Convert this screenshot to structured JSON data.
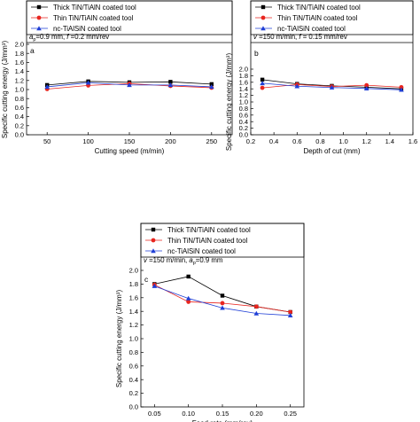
{
  "legend": {
    "thick": "Thick TiN/TiAlN coated tool",
    "thin": "Thin TiN/TiAlN coated tool",
    "nc": "nc-TiAlSiN coated tool"
  },
  "series_colors": {
    "thick": "#000000",
    "thin": "#e8251f",
    "nc": "#1f3fd6"
  },
  "chart_data": [
    {
      "type": "line",
      "panel_label": "a",
      "conditions": [
        "a",
        "p",
        "=0.9 mm, ",
        "f",
        " =0.2 mm/rev"
      ],
      "xlabel": "Cutting speed (m/min)",
      "ylabel": "Specific cutting energy (J/mm³)",
      "xlim": [
        25,
        275
      ],
      "ylim": [
        0.0,
        2.0
      ],
      "xticks": [
        50,
        100,
        150,
        200,
        250
      ],
      "yticks": [
        0.0,
        0.2,
        0.4,
        0.6,
        0.8,
        1.0,
        1.2,
        1.4,
        1.6,
        1.8,
        2.0
      ],
      "ytick_labels": [
        "0.0",
        "0.2",
        "0.4",
        "0.6",
        "0.8",
        "1.0",
        "1.2",
        "1.4",
        "1.6",
        "1.8",
        "2.0"
      ],
      "x": [
        50,
        100,
        150,
        200,
        250
      ],
      "series": [
        {
          "key": "thick",
          "values": [
            1.1,
            1.18,
            1.16,
            1.17,
            1.12
          ]
        },
        {
          "key": "thin",
          "values": [
            1.01,
            1.09,
            1.13,
            1.08,
            1.04
          ]
        },
        {
          "key": "nc",
          "values": [
            1.06,
            1.15,
            1.1,
            1.1,
            1.06
          ]
        }
      ]
    },
    {
      "type": "line",
      "panel_label": "b",
      "conditions": [
        "v",
        " =150 m/min, ",
        "f",
        " = 0.15 mm/rev"
      ],
      "xlabel": "Depth of cut (mm)",
      "ylabel": "Specific cutting energy (J/mm³)",
      "xlim": [
        0.2,
        1.6
      ],
      "ylim": [
        0.0,
        2.0
      ],
      "xticks": [
        0.2,
        0.4,
        0.6,
        0.8,
        1.0,
        1.2,
        1.4,
        1.6
      ],
      "xtick_labels": [
        "0.2",
        "0.4",
        "0.6",
        "0.8",
        "1.0",
        "1.2",
        "1.4",
        "1.6"
      ],
      "yticks": [
        0.0,
        0.2,
        0.4,
        0.6,
        0.8,
        1.0,
        1.2,
        1.4,
        1.6,
        1.8,
        2.0
      ],
      "ytick_labels": [
        "0.0",
        "0.2",
        "0.4",
        "0.6",
        "0.8",
        "1.0",
        "1.2",
        "1.4",
        "1.6",
        "1.8",
        "2.0"
      ],
      "x": [
        0.3,
        0.6,
        0.9,
        1.2,
        1.5
      ],
      "series": [
        {
          "key": "thick",
          "values": [
            1.68,
            1.55,
            1.49,
            1.45,
            1.4
          ]
        },
        {
          "key": "thin",
          "values": [
            1.43,
            1.53,
            1.47,
            1.51,
            1.45
          ]
        },
        {
          "key": "nc",
          "values": [
            1.57,
            1.48,
            1.44,
            1.41,
            1.37
          ]
        }
      ]
    },
    {
      "type": "line",
      "panel_label": "c",
      "conditions": [
        "v",
        " =150 m/min, ",
        "a",
        "p",
        "=0.9 mm"
      ],
      "xlabel": "Feed rate (mm/rev)",
      "ylabel": "Specific cutting energy (J/mm³)",
      "xlim": [
        0.03,
        0.27
      ],
      "ylim": [
        0.0,
        2.0
      ],
      "xticks": [
        0.05,
        0.1,
        0.15,
        0.2,
        0.25
      ],
      "xtick_labels": [
        "0.05",
        "0.10",
        "0.15",
        "0.20",
        "0.25"
      ],
      "yticks": [
        0.0,
        0.2,
        0.4,
        0.6,
        0.8,
        1.0,
        1.2,
        1.4,
        1.6,
        1.8,
        2.0
      ],
      "ytick_labels": [
        "0.0",
        "0.2",
        "0.4",
        "0.6",
        "0.8",
        "1.0",
        "1.2",
        "1.4",
        "1.6",
        "1.8",
        "2.0"
      ],
      "x": [
        0.05,
        0.1,
        0.15,
        0.2,
        0.25
      ],
      "series": [
        {
          "key": "thick",
          "values": [
            1.8,
            1.91,
            1.63,
            1.47,
            1.39
          ]
        },
        {
          "key": "thin",
          "values": [
            1.79,
            1.54,
            1.52,
            1.47,
            1.39
          ]
        },
        {
          "key": "nc",
          "values": [
            1.77,
            1.59,
            1.45,
            1.37,
            1.34
          ]
        }
      ]
    }
  ]
}
